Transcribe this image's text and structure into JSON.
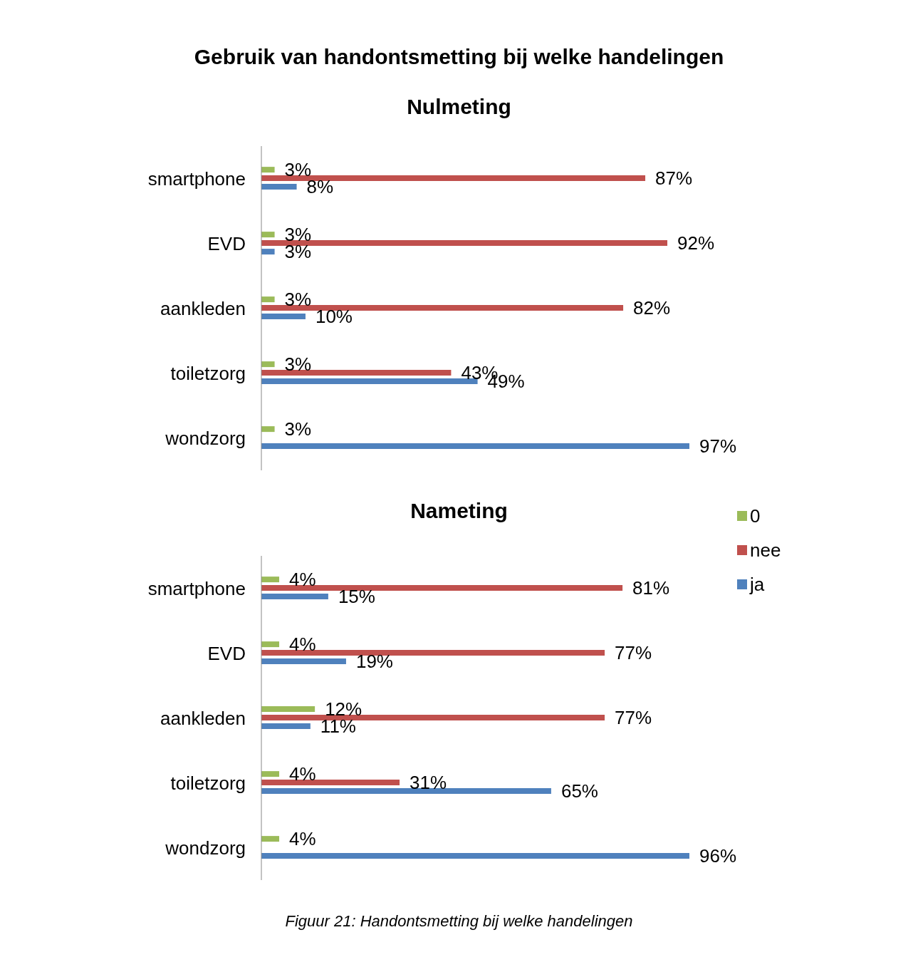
{
  "chart_data": [
    {
      "type": "bar",
      "orientation": "horizontal",
      "title": "Gebruik van handontsmetting bij welke handelingen",
      "subtitle": "Nulmeting",
      "categories": [
        "smartphone",
        "EVD",
        "aankleden",
        "toiletzorg",
        "wondzorg"
      ],
      "series": [
        {
          "color": "#9bbb59",
          "values": [
            3,
            3,
            3,
            3,
            3
          ],
          "value_labels": [
            "3%",
            "3%",
            "3%",
            "3%",
            "3%"
          ]
        },
        {
          "color": "#c0504d",
          "values": [
            87,
            92,
            82,
            43,
            null
          ],
          "value_labels": [
            "87%",
            "92%",
            "82%",
            "43%",
            null
          ]
        },
        {
          "color": "#4f81bd",
          "values": [
            8,
            3,
            10,
            49,
            97
          ],
          "value_labels": [
            "8%",
            "3%",
            "10%",
            "49%",
            "97%"
          ]
        }
      ],
      "legend": false,
      "tick_labels": "y"
    },
    {
      "type": "bar",
      "orientation": "horizontal",
      "title": "Nameting",
      "categories": [
        "smartphone",
        "EVD",
        "aankleden",
        "toiletzorg",
        "wondzorg"
      ],
      "series": [
        {
          "name": "0",
          "color": "#9bbb59",
          "values": [
            4,
            4,
            12,
            4,
            4
          ],
          "value_labels": [
            "4%",
            "4%",
            "12%",
            "4%",
            "4%"
          ]
        },
        {
          "name": "nee",
          "color": "#c0504d",
          "values": [
            81,
            77,
            77,
            31,
            null
          ],
          "value_labels": [
            "81%",
            "77%",
            "77%",
            "31%",
            null
          ]
        },
        {
          "name": "ja",
          "color": "#4f81bd",
          "values": [
            15,
            19,
            11,
            65,
            96
          ],
          "value_labels": [
            "15%",
            "19%",
            "11%",
            "65%",
            "96%"
          ]
        }
      ],
      "legend": "top right",
      "tick_labels": "y",
      "annotations": [
        "Figuur 21: Handontsmetting bij welke handelingen"
      ]
    }
  ]
}
